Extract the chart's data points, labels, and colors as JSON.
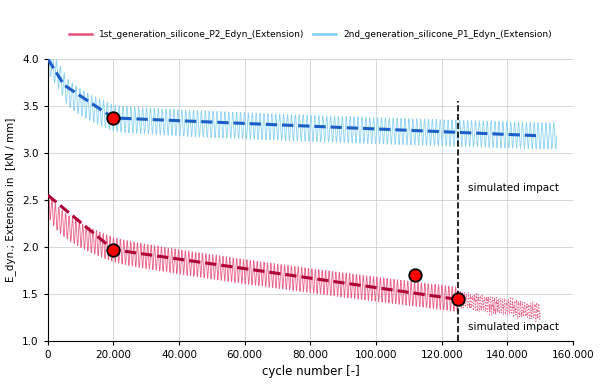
{
  "title": "",
  "xlabel": "cycle number [-]",
  "ylabel": "E_dyn.; Extension in  [kN / mm]",
  "xlim": [
    0,
    160000
  ],
  "ylim": [
    1.0,
    4.0
  ],
  "yticks": [
    1.0,
    1.5,
    2.0,
    2.5,
    3.0,
    3.5,
    4.0
  ],
  "xticks": [
    0,
    20000,
    40000,
    60000,
    80000,
    100000,
    120000,
    140000,
    160000
  ],
  "legend1_label": "1st_generation_silicone_P2_Edyn_(Extension)",
  "legend2_label": "2nd_generation_silicone_P1_Edyn_(Extension)",
  "color_red": "#e8507a",
  "color_blue": "#7ecff0",
  "color_red_dark": "#b0003a",
  "color_blue_dark": "#1a5fc8",
  "impact_x": 125000,
  "impact_label": "simulated impact",
  "red_marker1_x": 20000,
  "red_marker1_y": 1.97,
  "red_marker2_x": 112000,
  "red_marker2_y": 1.7,
  "red_marker3_x": 125000,
  "red_marker3_y": 1.44,
  "blue_marker1_x": 20000,
  "blue_marker1_y": 3.37,
  "red_init_y": 2.55,
  "blue_init_y": 4.0,
  "blue_settle_y": 3.72,
  "red_end_x": 145000,
  "red_end_y": 1.28,
  "simulated_impact_blue_y": 2.62,
  "simulated_impact_red_y": 1.15
}
